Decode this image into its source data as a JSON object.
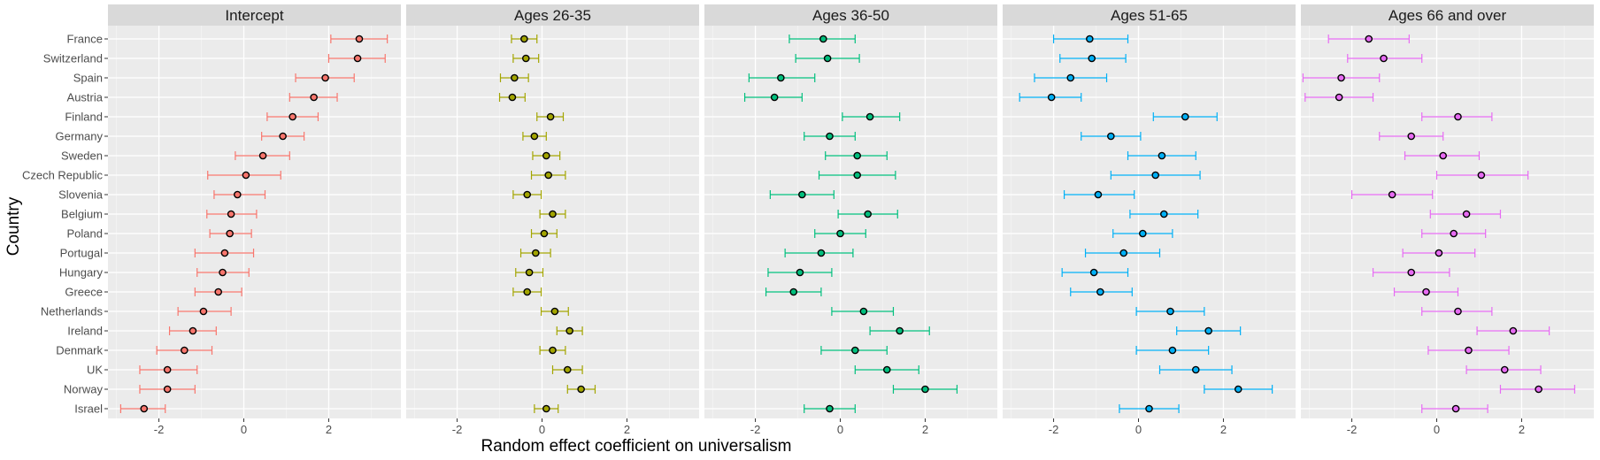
{
  "chart_data": {
    "type": "scatter",
    "subtype": "facetted-dot-and-errorbar",
    "xlabel": "Random effect coefficient on universalism",
    "ylabel": "Country",
    "xlim": [
      -3.2,
      3.7
    ],
    "x_ticks": [
      -2,
      0,
      2
    ],
    "grid": true,
    "legend": "none",
    "countries": [
      "France",
      "Switzerland",
      "Spain",
      "Austria",
      "Finland",
      "Germany",
      "Sweden",
      "Czech Republic",
      "Slovenia",
      "Belgium",
      "Poland",
      "Portugal",
      "Hungary",
      "Greece",
      "Netherlands",
      "Ireland",
      "Denmark",
      "UK",
      "Norway",
      "Israel"
    ],
    "facets": [
      {
        "name": "Intercept",
        "color": "#F8766D",
        "estimates": [
          2.72,
          2.68,
          1.92,
          1.65,
          1.15,
          0.92,
          0.45,
          0.05,
          -0.15,
          -0.3,
          -0.33,
          -0.45,
          -0.5,
          -0.6,
          -0.95,
          -1.2,
          -1.4,
          -1.8,
          -1.8,
          -2.35
        ],
        "lower": [
          2.05,
          2.0,
          1.22,
          1.08,
          0.55,
          0.42,
          -0.2,
          -0.85,
          -0.7,
          -0.87,
          -0.8,
          -1.15,
          -1.1,
          -1.15,
          -1.55,
          -1.75,
          -2.05,
          -2.45,
          -2.45,
          -2.9
        ],
        "upper": [
          3.38,
          3.33,
          2.6,
          2.2,
          1.75,
          1.42,
          1.08,
          0.87,
          0.5,
          0.3,
          0.18,
          0.23,
          0.12,
          -0.05,
          -0.3,
          -0.65,
          -0.75,
          -1.1,
          -1.15,
          -1.85
        ]
      },
      {
        "name": "Ages 26-35",
        "color": "#A3A500",
        "estimates": [
          -0.42,
          -0.38,
          -0.65,
          -0.7,
          0.2,
          -0.18,
          0.1,
          0.15,
          -0.35,
          0.25,
          0.05,
          -0.15,
          -0.3,
          -0.35,
          0.3,
          0.65,
          0.25,
          0.6,
          0.92,
          0.1
        ],
        "lower": [
          -0.72,
          -0.68,
          -0.98,
          -1.0,
          -0.12,
          -0.45,
          -0.22,
          -0.25,
          -0.68,
          -0.05,
          -0.25,
          -0.5,
          -0.62,
          -0.68,
          -0.02,
          0.35,
          -0.05,
          0.25,
          0.6,
          -0.18
        ],
        "upper": [
          -0.12,
          -0.08,
          -0.32,
          -0.4,
          0.5,
          0.1,
          0.42,
          0.55,
          -0.02,
          0.55,
          0.35,
          0.2,
          0.02,
          -0.02,
          0.62,
          0.95,
          0.55,
          0.95,
          1.25,
          0.38
        ]
      },
      {
        "name": "Ages 36-50",
        "color": "#00BF7D",
        "estimates": [
          -0.4,
          -0.3,
          -1.4,
          -1.55,
          0.7,
          -0.25,
          0.4,
          0.4,
          -0.9,
          0.65,
          0.0,
          -0.45,
          -0.95,
          -1.1,
          0.55,
          1.4,
          0.35,
          1.1,
          2.0,
          -0.25
        ],
        "lower": [
          -1.2,
          -1.05,
          -2.15,
          -2.25,
          0.05,
          -0.85,
          -0.35,
          -0.5,
          -1.65,
          -0.05,
          -0.6,
          -1.3,
          -1.7,
          -1.75,
          -0.2,
          0.7,
          -0.45,
          0.35,
          1.25,
          -0.85
        ],
        "upper": [
          0.35,
          0.45,
          -0.6,
          -0.9,
          1.4,
          0.35,
          1.1,
          1.3,
          -0.15,
          1.35,
          0.6,
          0.3,
          -0.2,
          -0.45,
          1.25,
          2.1,
          1.1,
          1.85,
          2.75,
          0.35
        ]
      },
      {
        "name": "Ages 51-65",
        "color": "#00B0F6",
        "estimates": [
          -1.15,
          -1.1,
          -1.6,
          -2.05,
          1.1,
          -0.65,
          0.55,
          0.4,
          -0.95,
          0.6,
          0.1,
          -0.35,
          -1.05,
          -0.9,
          0.75,
          1.65,
          0.8,
          1.35,
          2.35,
          0.25
        ],
        "lower": [
          -2.0,
          -1.85,
          -2.45,
          -2.8,
          0.35,
          -1.35,
          -0.25,
          -0.65,
          -1.75,
          -0.2,
          -0.6,
          -1.25,
          -1.8,
          -1.6,
          -0.05,
          0.9,
          -0.05,
          0.5,
          1.55,
          -0.45
        ],
        "upper": [
          -0.25,
          -0.3,
          -0.75,
          -1.35,
          1.85,
          0.05,
          1.35,
          1.45,
          -0.1,
          1.4,
          0.8,
          0.5,
          -0.25,
          -0.15,
          1.55,
          2.4,
          1.65,
          2.2,
          3.15,
          0.95
        ]
      },
      {
        "name": "Ages 66 and over",
        "color": "#E76BF3",
        "estimates": [
          -1.6,
          -1.25,
          -2.25,
          -2.3,
          0.5,
          -0.6,
          0.15,
          1.05,
          -1.05,
          0.7,
          0.4,
          0.05,
          -0.6,
          -0.25,
          0.5,
          1.8,
          0.75,
          1.6,
          2.4,
          0.45
        ],
        "lower": [
          -2.55,
          -2.1,
          -3.15,
          -3.1,
          -0.35,
          -1.35,
          -0.75,
          0.0,
          -2.0,
          -0.15,
          -0.35,
          -0.8,
          -1.5,
          -1.0,
          -0.35,
          0.95,
          -0.2,
          0.7,
          1.5,
          -0.35
        ],
        "upper": [
          -0.65,
          -0.35,
          -1.35,
          -1.5,
          1.3,
          0.15,
          1.0,
          2.15,
          -0.1,
          1.5,
          1.15,
          0.9,
          0.3,
          0.5,
          1.3,
          2.65,
          1.7,
          2.45,
          3.25,
          1.2
        ]
      }
    ]
  }
}
